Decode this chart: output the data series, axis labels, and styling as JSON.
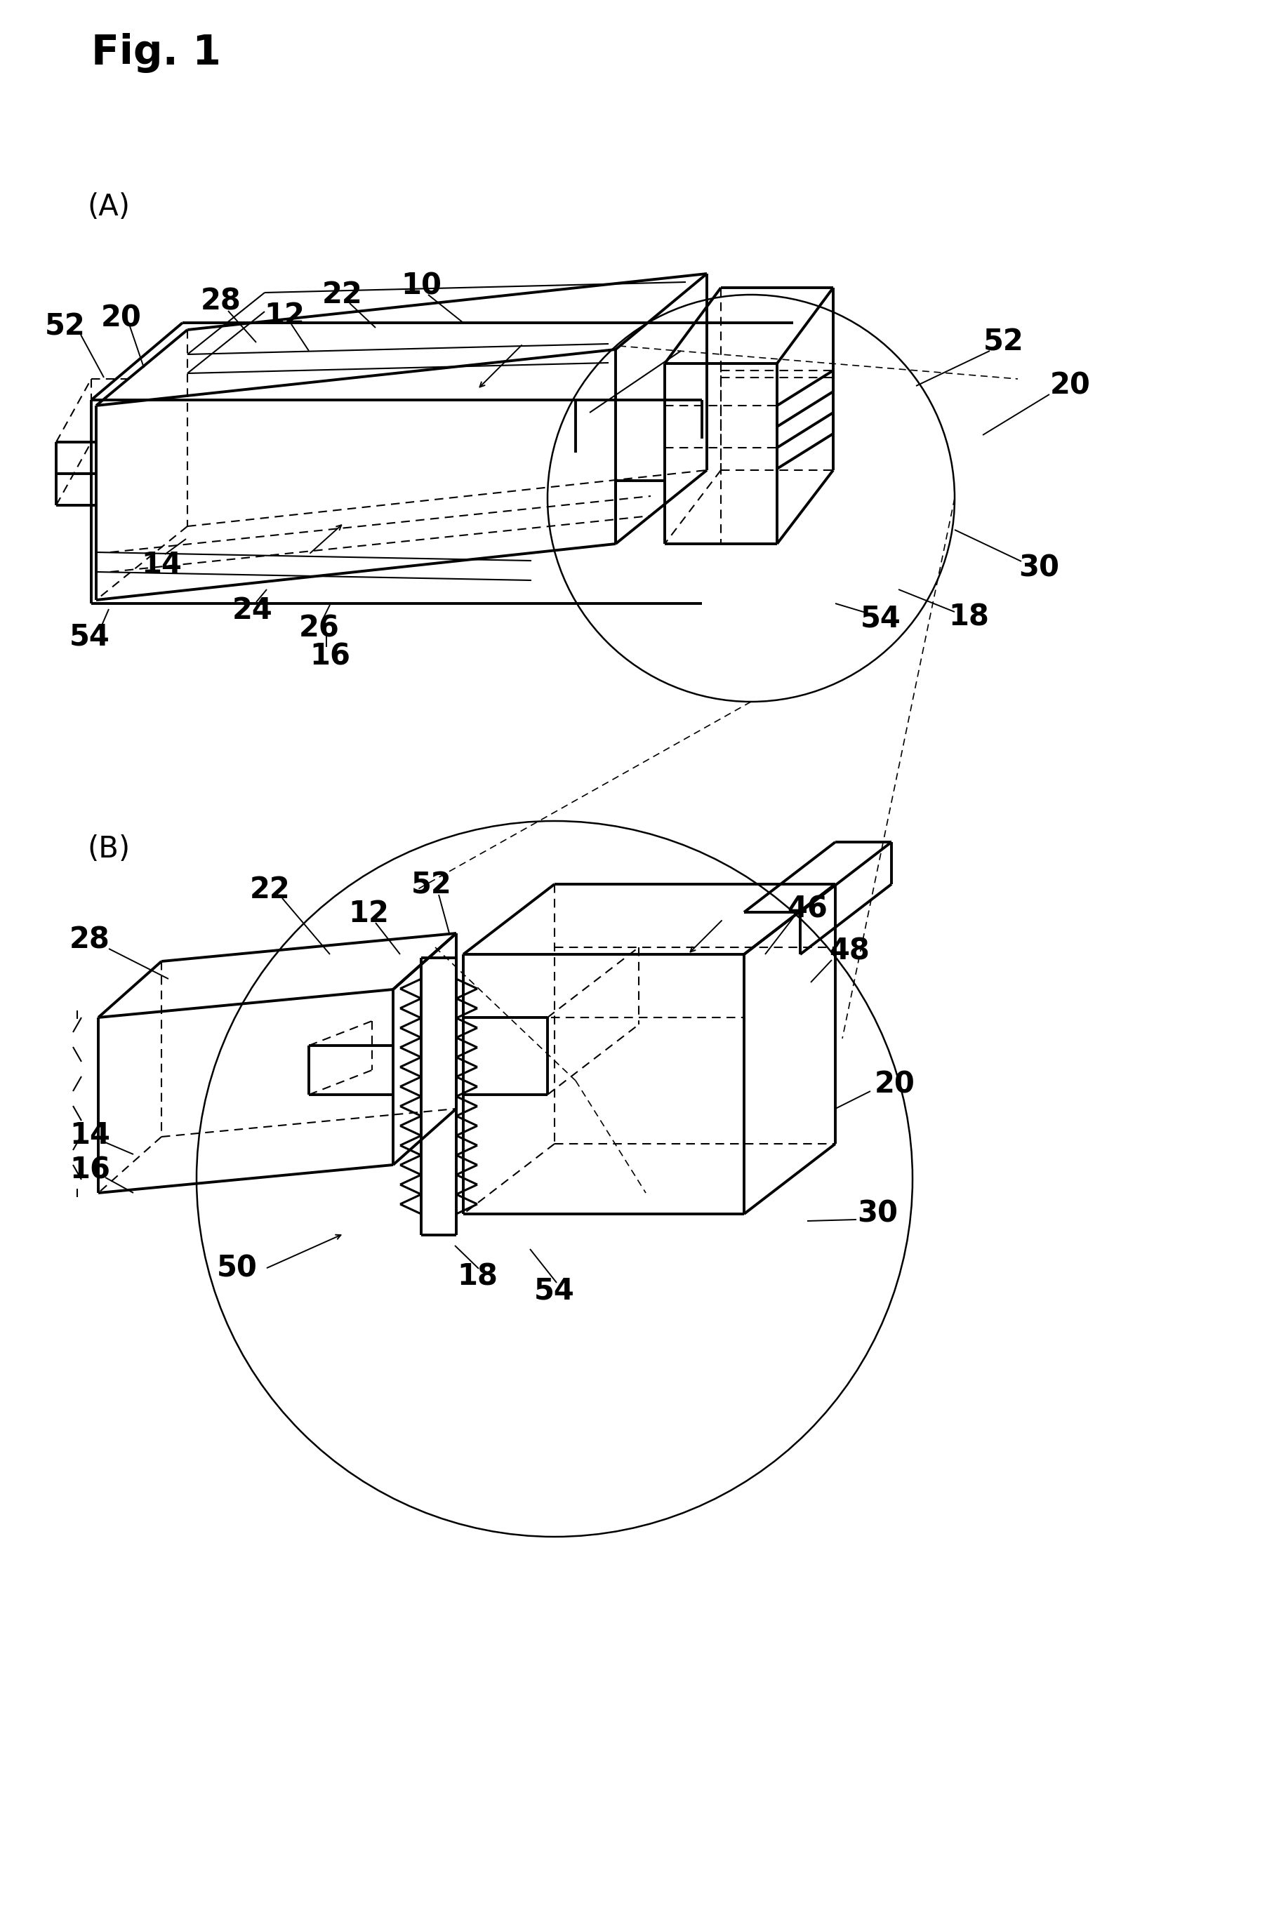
{
  "fig_title": "Fig. 1",
  "label_A": "(A)",
  "label_B": "(B)",
  "bg_color": "#ffffff",
  "line_color": "#000000",
  "lw_main": 2.8,
  "lw_thin": 1.5,
  "lw_leader": 1.4,
  "fs_labels": 30,
  "fs_title": 42,
  "fs_sub": 30
}
